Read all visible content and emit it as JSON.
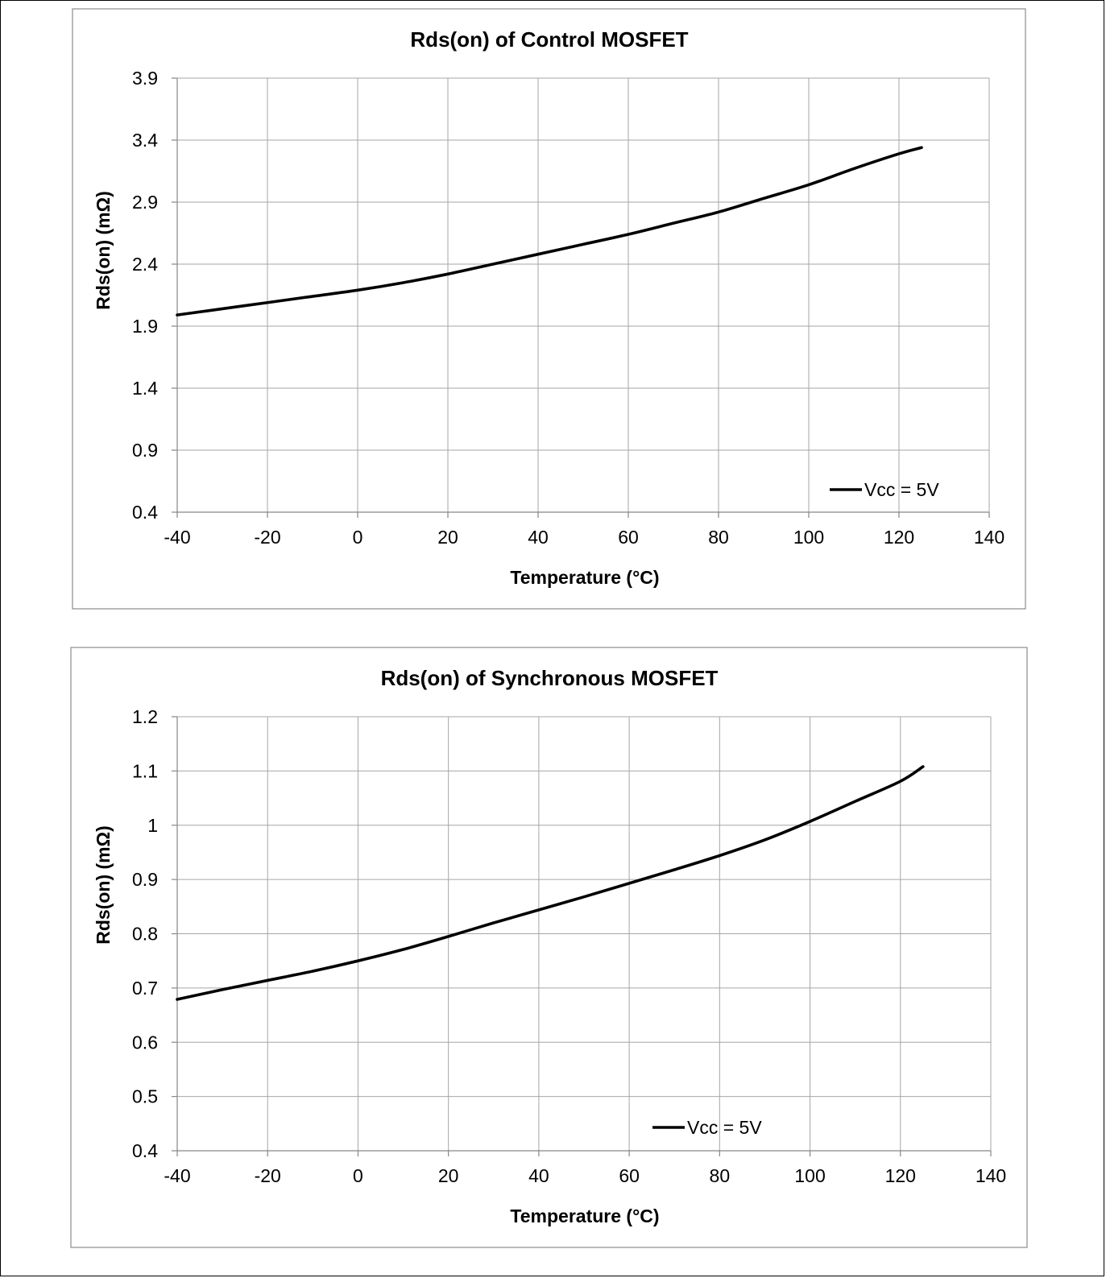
{
  "chart_data": [
    {
      "type": "line",
      "title": "Rds(on) of Control MOSFET",
      "xlabel": "Temperature (°C)",
      "ylabel": "Rds(on) (mΩ)",
      "xlim": [
        -40,
        140
      ],
      "ylim": [
        0.4,
        3.9
      ],
      "xticks": [
        -40,
        -20,
        0,
        20,
        40,
        60,
        80,
        100,
        120,
        140
      ],
      "yticks": [
        0.4,
        0.9,
        1.4,
        1.9,
        2.4,
        2.9,
        3.4,
        3.9
      ],
      "xtick_labels": [
        "-40",
        "-20",
        "0",
        "20",
        "40",
        "60",
        "80",
        "100",
        "120",
        "140"
      ],
      "ytick_labels": [
        "0.4",
        "0.9",
        "1.4",
        "1.9",
        "2.4",
        "2.9",
        "3.4",
        "3.9"
      ],
      "grid": true,
      "legend_position": "bottom-right",
      "series": [
        {
          "name": "Vcc = 5V",
          "color": "#000000",
          "x": [
            -40,
            -30,
            -20,
            -10,
            0,
            10,
            20,
            30,
            40,
            50,
            60,
            70,
            80,
            90,
            100,
            110,
            120,
            125
          ],
          "y": [
            1.99,
            2.04,
            2.09,
            2.14,
            2.19,
            2.25,
            2.32,
            2.4,
            2.48,
            2.56,
            2.64,
            2.73,
            2.82,
            2.93,
            3.04,
            3.17,
            3.29,
            3.34
          ]
        }
      ]
    },
    {
      "type": "line",
      "title": "Rds(on) of Synchronous MOSFET",
      "xlabel": "Temperature (°C)",
      "ylabel": "Rds(on) (mΩ)",
      "xlim": [
        -40,
        140
      ],
      "ylim": [
        0.4,
        1.2
      ],
      "xticks": [
        -40,
        -20,
        0,
        20,
        40,
        60,
        80,
        100,
        120,
        140
      ],
      "yticks": [
        0.4,
        0.5,
        0.6,
        0.7,
        0.8,
        0.9,
        1.0,
        1.1,
        1.2
      ],
      "xtick_labels": [
        "-40",
        "-20",
        "0",
        "20",
        "40",
        "60",
        "80",
        "100",
        "120",
        "140"
      ],
      "ytick_labels": [
        "0.4",
        "0.5",
        "0.6",
        "0.7",
        "0.8",
        "0.9",
        "1",
        "1.1",
        "1.2"
      ],
      "grid": true,
      "legend_position": "bottom-center",
      "series": [
        {
          "name": "Vcc = 5V",
          "color": "#000000",
          "x": [
            -40,
            -30,
            -20,
            -10,
            0,
            10,
            20,
            30,
            40,
            50,
            60,
            70,
            80,
            90,
            100,
            110,
            120,
            125
          ],
          "y": [
            0.679,
            0.697,
            0.714,
            0.731,
            0.75,
            0.771,
            0.795,
            0.82,
            0.844,
            0.868,
            0.893,
            0.918,
            0.944,
            0.973,
            1.007,
            1.044,
            1.081,
            1.108
          ]
        }
      ]
    }
  ]
}
